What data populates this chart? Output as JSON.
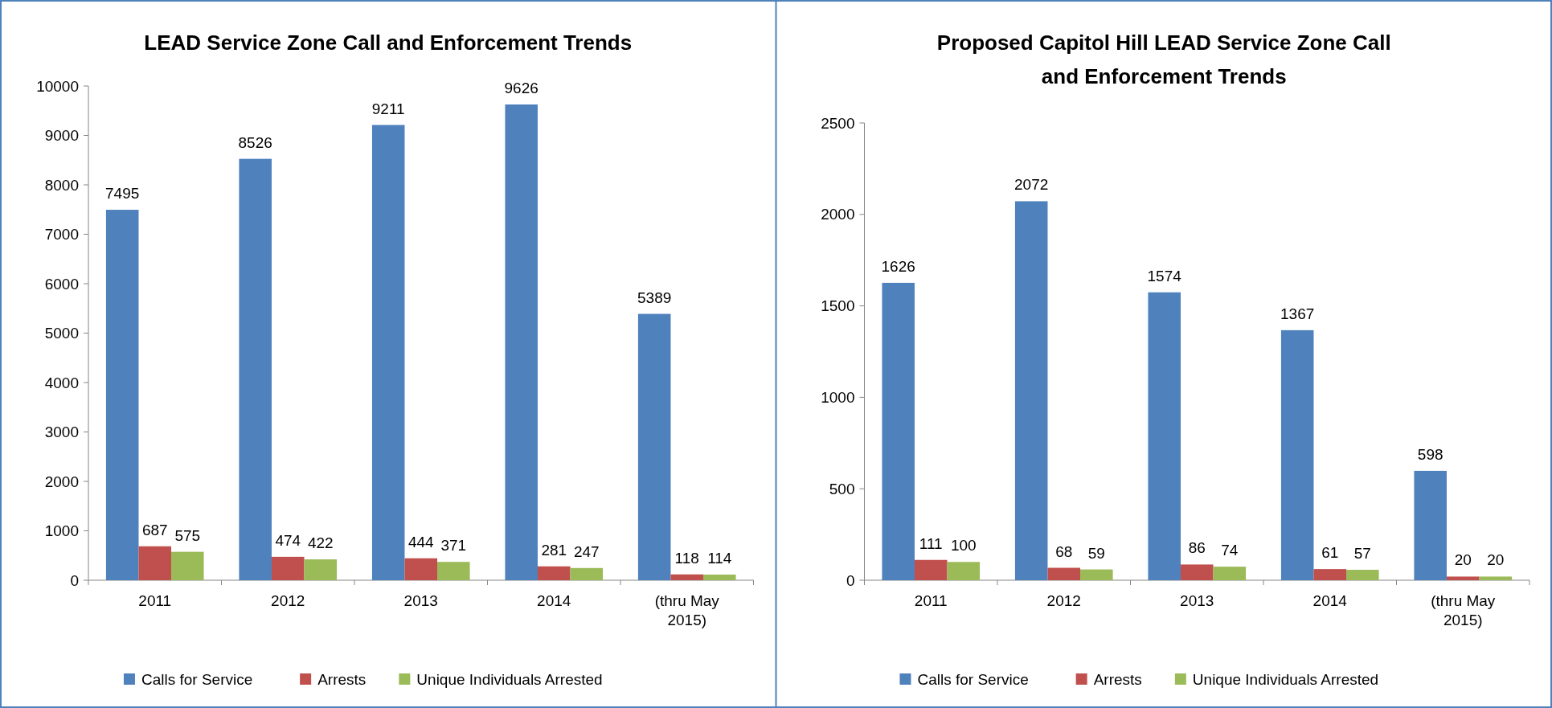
{
  "chart_data": [
    {
      "type": "bar",
      "title": "LEAD Service Zone Call and Enforcement Trends",
      "categories": [
        "2011",
        "2012",
        "2013",
        "2014",
        "(thru May 2015)"
      ],
      "series": [
        {
          "name": "Calls for Service",
          "color": "#4f81bd",
          "values": [
            7495,
            8526,
            9211,
            9626,
            5389
          ]
        },
        {
          "name": "Arrests",
          "color": "#c0504d",
          "values": [
            687,
            474,
            444,
            281,
            118
          ]
        },
        {
          "name": "Unique Individuals Arrested",
          "color": "#9bbb59",
          "values": [
            575,
            422,
            371,
            247,
            114
          ]
        }
      ],
      "ylim": [
        0,
        10000
      ],
      "yticks": [
        0,
        1000,
        2000,
        3000,
        4000,
        5000,
        6000,
        7000,
        8000,
        9000,
        10000
      ],
      "grid": false,
      "legend": "bottom",
      "data_labels": true
    },
    {
      "type": "bar",
      "title": "Proposed Capitol Hill LEAD Service Zone Call and Enforcement Trends",
      "categories": [
        "2011",
        "2012",
        "2013",
        "2014",
        "(thru May 2015)"
      ],
      "series": [
        {
          "name": "Calls for Service",
          "color": "#4f81bd",
          "values": [
            1626,
            2072,
            1574,
            1367,
            598
          ]
        },
        {
          "name": "Arrests",
          "color": "#c0504d",
          "values": [
            111,
            68,
            86,
            61,
            20
          ]
        },
        {
          "name": "Unique Individuals Arrested",
          "color": "#9bbb59",
          "values": [
            100,
            59,
            74,
            57,
            20
          ]
        }
      ],
      "ylim": [
        0,
        2500
      ],
      "yticks": [
        0,
        500,
        1000,
        1500,
        2000,
        2500
      ],
      "grid": false,
      "legend": "bottom",
      "data_labels": true
    }
  ]
}
